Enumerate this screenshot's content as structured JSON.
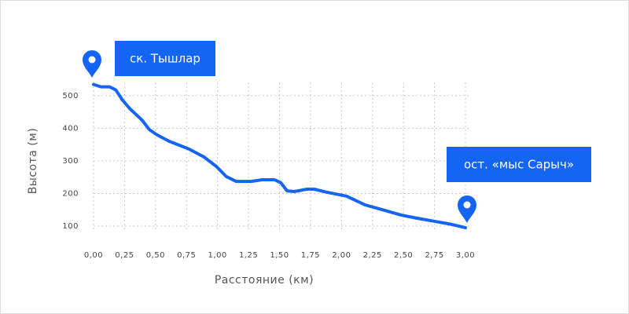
{
  "chart_data": {
    "type": "line",
    "x_label": "Расстояние (км)",
    "y_label": "Высота (м)",
    "annotations": [
      "ск. Тышлар",
      "ост. «мыс Сарыч»"
    ],
    "color": "#1565f5",
    "grid": true,
    "xlim": [
      0,
      3
    ],
    "ylim": [
      100,
      550
    ],
    "xticks": [
      {
        "value": 0,
        "label": "0,00"
      },
      {
        "value": 0.25,
        "label": "0,25"
      },
      {
        "value": 0.5,
        "label": "0,50"
      },
      {
        "value": 0.75,
        "label": "0,75"
      },
      {
        "value": 1,
        "label": "1,00"
      },
      {
        "value": 1.25,
        "label": "1,25"
      },
      {
        "value": 1.5,
        "label": "1,50"
      },
      {
        "value": 1.75,
        "label": "1,75"
      },
      {
        "value": 2,
        "label": "2,00"
      },
      {
        "value": 2.25,
        "label": "2,25"
      },
      {
        "value": 2.5,
        "label": "2,50"
      },
      {
        "value": 2.75,
        "label": "2,75"
      },
      {
        "value": 3,
        "label": "3,00"
      }
    ],
    "yticks": [
      100,
      200,
      300,
      400,
      500
    ],
    "x": [
      0,
      0.06,
      0.13,
      0.18,
      0.23,
      0.29,
      0.39,
      0.45,
      0.51,
      0.61,
      0.77,
      0.89,
      0.99,
      1.07,
      1.15,
      1.27,
      1.36,
      1.46,
      1.51,
      1.56,
      1.62,
      1.72,
      1.78,
      1.88,
      2.04,
      2.19,
      2.35,
      2.48,
      2.61,
      2.76,
      2.89,
      3.0
    ],
    "values": [
      534,
      527,
      527,
      517,
      488,
      461,
      425,
      396,
      380,
      360,
      336,
      312,
      283,
      252,
      237,
      237,
      242,
      242,
      233,
      208,
      206,
      213,
      213,
      204,
      192,
      165,
      148,
      134,
      124,
      114,
      105,
      95
    ]
  }
}
